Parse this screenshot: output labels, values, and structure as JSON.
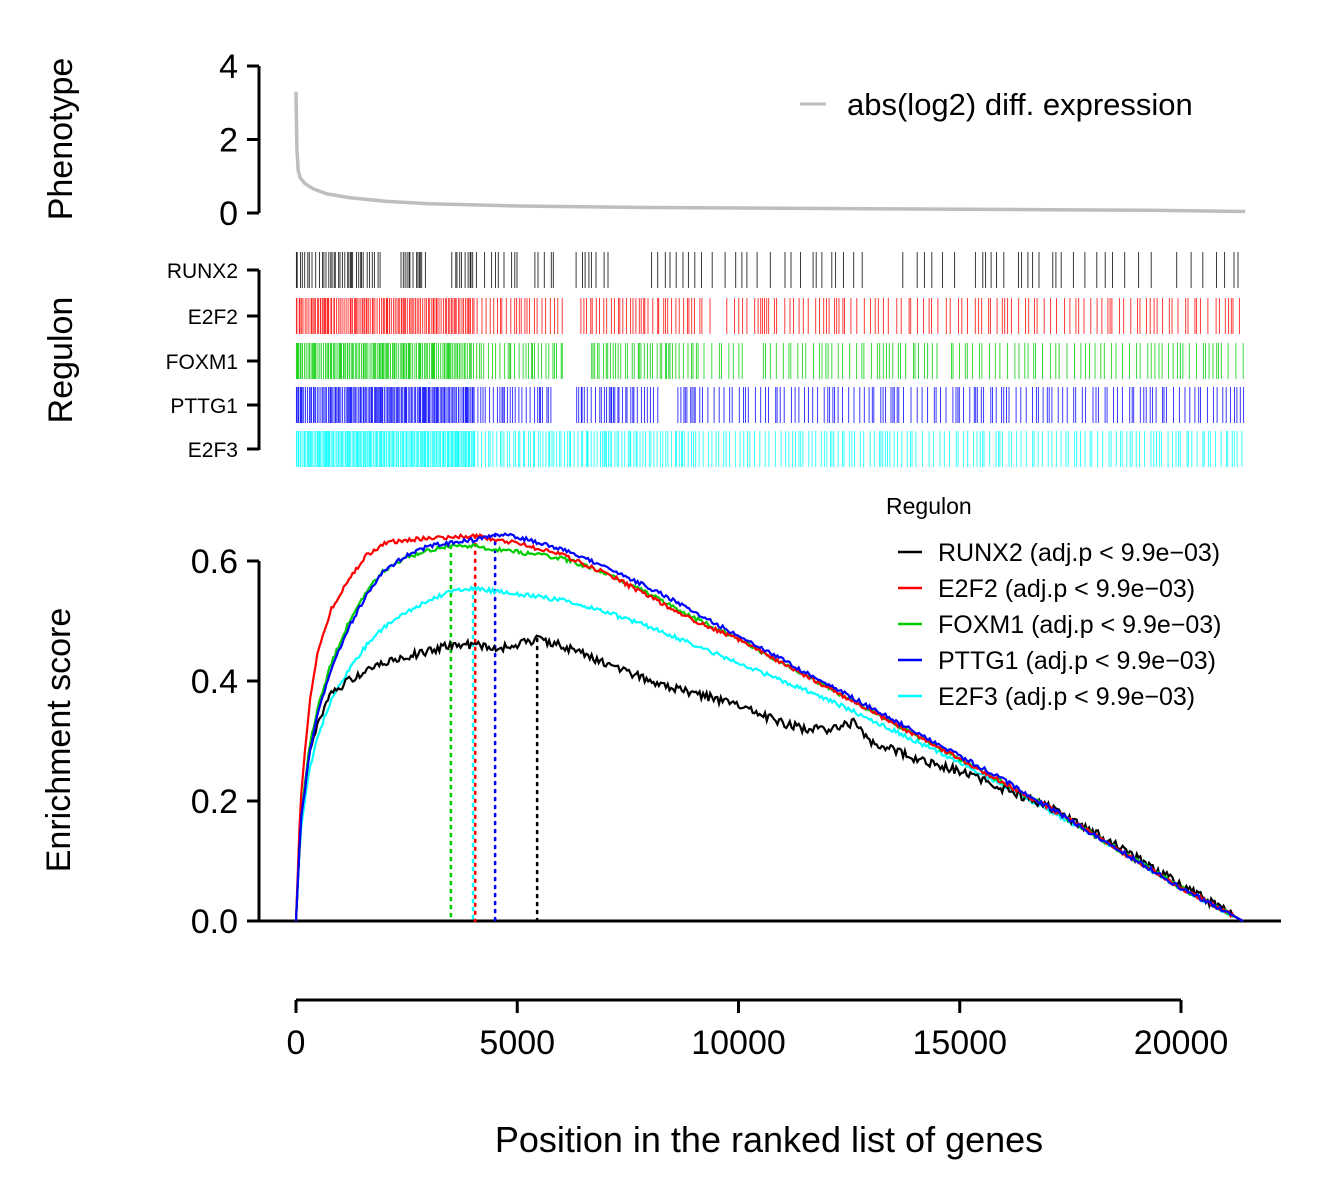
{
  "colors": {
    "phenotype": "#bebebe",
    "RUNX2": "#000000",
    "E2F2": "#ff0000",
    "FOXM1": "#00cd00",
    "PTTG1": "#0000ff",
    "E2F3": "#00ffff"
  },
  "chart_data": {
    "type": "line",
    "xlabel": "Position in the ranked list of genes",
    "x_ticks": [
      "0",
      "5000",
      "10000",
      "15000",
      "20000"
    ],
    "x_tick_values": [
      0,
      5000,
      10000,
      15000,
      20000
    ],
    "xlim": [
      0,
      21500
    ],
    "phenotype_panel": {
      "ylabel": "Phenotype",
      "ylim": [
        0,
        4
      ],
      "y_ticks": [
        "0",
        "2",
        "4"
      ],
      "y_tick_values": [
        0,
        2,
        4
      ],
      "legend": "abs(log2) diff. expression",
      "curve": {
        "x": [
          0,
          20,
          50,
          100,
          200,
          400,
          700,
          1200,
          2000,
          3000,
          5000,
          8000,
          11000,
          14000,
          17000,
          19500,
          21450
        ],
        "y": [
          3.3,
          1.75,
          1.15,
          0.95,
          0.8,
          0.65,
          0.52,
          0.42,
          0.32,
          0.25,
          0.19,
          0.15,
          0.13,
          0.11,
          0.09,
          0.07,
          0.04
        ]
      }
    },
    "regulon_panel": {
      "ylabel": "Regulon",
      "regulons": [
        "RUNX2",
        "E2F2",
        "FOXM1",
        "PTTG1",
        "E2F3"
      ]
    },
    "enrichment_panel": {
      "ylabel": "Enrichment score",
      "ylim": [
        0,
        0.6
      ],
      "y_ticks": [
        "0.0",
        "0.2",
        "0.4",
        "0.6"
      ],
      "y_tick_values": [
        0,
        0.2,
        0.4,
        0.6
      ],
      "legend_title": "Regulon",
      "legend_placement": "top-right",
      "series": [
        {
          "name": "RUNX2 (adj.p < 9.9e−03)",
          "regulon": "RUNX2",
          "peak_x": 5450,
          "x": [
            0,
            100,
            300,
            500,
            800,
            1200,
            1600,
            2000,
            2500,
            3000,
            3500,
            4000,
            4500,
            5000,
            5450,
            6000,
            7000,
            8000,
            9000,
            10000,
            11000,
            11500,
            12000,
            12600,
            13000,
            14000,
            15000,
            16000,
            17000,
            18000,
            19000,
            20000,
            21400
          ],
          "y": [
            0,
            0.16,
            0.28,
            0.33,
            0.38,
            0.4,
            0.42,
            0.43,
            0.44,
            0.45,
            0.46,
            0.46,
            0.455,
            0.46,
            0.47,
            0.46,
            0.43,
            0.4,
            0.38,
            0.36,
            0.33,
            0.32,
            0.32,
            0.33,
            0.3,
            0.27,
            0.25,
            0.22,
            0.19,
            0.15,
            0.105,
            0.06,
            0
          ]
        },
        {
          "name": "E2F2 (adj.p < 9.9e−03)",
          "regulon": "E2F2",
          "peak_x": 4050,
          "x": [
            0,
            100,
            300,
            500,
            800,
            1200,
            1600,
            2000,
            2500,
            3000,
            3500,
            4050,
            4500,
            5000,
            6000,
            7000,
            8000,
            9000,
            10000,
            11000,
            12000,
            13000,
            14000,
            15000,
            16000,
            17000,
            18000,
            19000,
            20000,
            21400
          ],
          "y": [
            0,
            0.2,
            0.36,
            0.45,
            0.52,
            0.57,
            0.61,
            0.63,
            0.635,
            0.638,
            0.64,
            0.642,
            0.635,
            0.63,
            0.61,
            0.58,
            0.54,
            0.5,
            0.47,
            0.43,
            0.39,
            0.35,
            0.31,
            0.27,
            0.23,
            0.19,
            0.145,
            0.1,
            0.055,
            0
          ]
        },
        {
          "name": "FOXM1 (adj.p < 9.9e−03)",
          "regulon": "FOXM1",
          "peak_x": 3500,
          "x": [
            0,
            100,
            300,
            500,
            800,
            1200,
            1600,
            2000,
            2500,
            3000,
            3500,
            4000,
            4500,
            5000,
            6000,
            7000,
            8000,
            9000,
            10000,
            11000,
            12000,
            13000,
            14000,
            15000,
            16000,
            17000,
            18000,
            19000,
            20000,
            21400
          ],
          "y": [
            0,
            0.17,
            0.29,
            0.36,
            0.43,
            0.5,
            0.55,
            0.585,
            0.605,
            0.618,
            0.625,
            0.625,
            0.62,
            0.615,
            0.605,
            0.58,
            0.545,
            0.505,
            0.47,
            0.43,
            0.39,
            0.35,
            0.31,
            0.27,
            0.23,
            0.19,
            0.145,
            0.1,
            0.055,
            0
          ]
        },
        {
          "name": "PTTG1 (adj.p < 9.9e−03)",
          "regulon": "PTTG1",
          "peak_x": 4500,
          "x": [
            0,
            100,
            300,
            500,
            800,
            1200,
            1600,
            2000,
            2500,
            3000,
            3500,
            4000,
            4500,
            5000,
            6000,
            7000,
            8000,
            9000,
            10000,
            11000,
            12000,
            13000,
            14000,
            15000,
            16000,
            17000,
            18000,
            19000,
            20000,
            21400
          ],
          "y": [
            0,
            0.16,
            0.28,
            0.35,
            0.42,
            0.49,
            0.545,
            0.585,
            0.61,
            0.625,
            0.63,
            0.635,
            0.645,
            0.64,
            0.62,
            0.59,
            0.555,
            0.515,
            0.475,
            0.435,
            0.395,
            0.355,
            0.315,
            0.275,
            0.235,
            0.19,
            0.145,
            0.1,
            0.055,
            0
          ]
        },
        {
          "name": "E2F3 (adj.p < 9.9e−03)",
          "regulon": "E2F3",
          "peak_x": 4000,
          "x": [
            0,
            100,
            300,
            500,
            800,
            1200,
            1600,
            2000,
            2500,
            3000,
            3500,
            4000,
            4500,
            5000,
            6000,
            7000,
            8000,
            9000,
            10000,
            11000,
            12000,
            13000,
            14000,
            15000,
            16000,
            17000,
            18000,
            19000,
            20000,
            21400
          ],
          "y": [
            0,
            0.15,
            0.25,
            0.31,
            0.37,
            0.42,
            0.46,
            0.49,
            0.515,
            0.535,
            0.55,
            0.555,
            0.55,
            0.545,
            0.535,
            0.515,
            0.49,
            0.46,
            0.43,
            0.4,
            0.37,
            0.335,
            0.3,
            0.265,
            0.225,
            0.185,
            0.145,
            0.1,
            0.055,
            0
          ]
        }
      ]
    }
  }
}
